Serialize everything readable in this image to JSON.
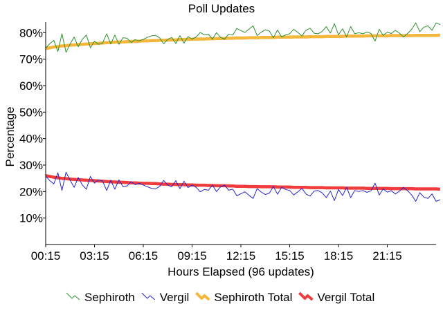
{
  "chart_data": {
    "type": "line",
    "title": "Poll Updates",
    "xlabel": "Hours Elapsed (96 updates)",
    "ylabel": "Percentage",
    "x_tick_labels": [
      "00:15",
      "03:15",
      "06:15",
      "09:15",
      "12:15",
      "15:15",
      "18:15",
      "21:15"
    ],
    "x_tick_positions": [
      0,
      12,
      24,
      36,
      48,
      60,
      72,
      84
    ],
    "x_range": [
      0,
      96
    ],
    "y_tick_labels": [
      "10%",
      "20%",
      "30%",
      "40%",
      "50%",
      "60%",
      "70%",
      "80%"
    ],
    "y_tick_values": [
      10,
      20,
      30,
      40,
      50,
      60,
      70,
      80
    ],
    "ylim": [
      0,
      84
    ],
    "grid": false,
    "legend_position": "bottom",
    "series": [
      {
        "name": "Sephiroth",
        "color": "#2d8f2d",
        "style": "thin",
        "values": [
          74.2,
          75.8,
          77.1,
          72.9,
          79.6,
          72.6,
          75.7,
          78.4,
          74.7,
          77.5,
          79.1,
          74.3,
          76.8,
          75.6,
          76.1,
          79.6,
          75.7,
          79.1,
          75.6,
          78.1,
          77.9,
          76.3,
          77.4,
          76.9,
          77.5,
          78.2,
          78.8,
          79.0,
          78.1,
          75.8,
          77.5,
          78.2,
          75.9,
          78.9,
          76.1,
          78.5,
          77.6,
          78.4,
          80.1,
          79.2,
          79.5,
          77.6,
          80.0,
          78.2,
          77.6,
          79.5,
          79.1,
          81.6,
          80.8,
          80.1,
          81.4,
          82.6,
          78.9,
          80.2,
          81.1,
          80.6,
          78.1,
          81.0,
          78.4,
          79.2,
          79.6,
          81.3,
          80.1,
          78.8,
          80.9,
          81.7,
          79.8,
          79.6,
          80.5,
          82.3,
          79.8,
          83.4,
          79.2,
          81.5,
          78.4,
          82.3,
          79.6,
          80.0,
          79.6,
          80.3,
          79.7,
          76.8,
          81.3,
          79.0,
          80.2,
          79.7,
          80.9,
          79.8,
          78.4,
          79.7,
          81.3,
          83.7,
          80.4,
          82.1,
          82.6,
          80.9,
          83.7,
          83.1
        ]
      },
      {
        "name": "Vergil",
        "color": "#2424cc",
        "style": "thin",
        "values": [
          25.8,
          24.1,
          22.9,
          27.1,
          20.4,
          27.3,
          24.3,
          21.6,
          25.3,
          22.5,
          20.9,
          25.7,
          23.2,
          24.4,
          23.9,
          20.4,
          24.3,
          20.9,
          24.4,
          21.9,
          22.1,
          23.7,
          22.6,
          23.1,
          22.5,
          21.8,
          21.2,
          21.0,
          21.9,
          24.2,
          22.5,
          21.8,
          24.1,
          21.1,
          23.9,
          21.5,
          22.4,
          21.6,
          19.9,
          20.8,
          20.5,
          22.4,
          20.0,
          21.8,
          22.4,
          20.5,
          20.9,
          18.4,
          19.2,
          19.9,
          18.6,
          17.4,
          21.1,
          19.8,
          18.9,
          19.4,
          21.9,
          19.0,
          21.6,
          20.8,
          20.4,
          18.7,
          19.9,
          21.2,
          19.1,
          18.3,
          20.2,
          20.4,
          19.5,
          17.7,
          20.2,
          16.6,
          20.8,
          18.5,
          21.6,
          17.7,
          20.4,
          20.0,
          20.4,
          19.7,
          20.3,
          23.2,
          18.7,
          21.0,
          19.8,
          20.3,
          19.1,
          20.2,
          21.6,
          20.3,
          18.7,
          16.3,
          19.6,
          17.9,
          17.4,
          19.1,
          16.3,
          16.9
        ]
      },
      {
        "name": "Sephiroth Total",
        "color": "#f5b73b",
        "style": "thick",
        "values": [
          74.0,
          74.3,
          74.6,
          74.8,
          75.0,
          75.1,
          75.3,
          75.4,
          75.5,
          75.6,
          75.7,
          75.8,
          75.9,
          76.0,
          76.1,
          76.2,
          76.3,
          76.4,
          76.5,
          76.5,
          76.6,
          76.7,
          76.7,
          76.8,
          76.9,
          76.9,
          77.0,
          77.0,
          77.1,
          77.2,
          77.2,
          77.3,
          77.3,
          77.4,
          77.4,
          77.5,
          77.5,
          77.6,
          77.6,
          77.6,
          77.7,
          77.7,
          77.8,
          77.8,
          77.8,
          77.9,
          77.9,
          78.0,
          78.0,
          78.0,
          78.1,
          78.1,
          78.1,
          78.2,
          78.2,
          78.2,
          78.2,
          78.3,
          78.3,
          78.3,
          78.3,
          78.4,
          78.4,
          78.4,
          78.4,
          78.5,
          78.5,
          78.5,
          78.5,
          78.6,
          78.6,
          78.6,
          78.6,
          78.6,
          78.7,
          78.7,
          78.7,
          78.7,
          78.7,
          78.8,
          78.8,
          78.8,
          78.8,
          78.8,
          78.8,
          78.9,
          78.9,
          78.9,
          78.9,
          78.9,
          78.9,
          79.0,
          79.0,
          79.0,
          79.0,
          79.0,
          79.0,
          79.1
        ]
      },
      {
        "name": "Vergil Total",
        "color": "#f03c3c",
        "style": "thick",
        "values": [
          26.0,
          25.7,
          25.4,
          25.2,
          25.0,
          24.9,
          24.7,
          24.6,
          24.5,
          24.4,
          24.3,
          24.2,
          24.1,
          24.0,
          23.9,
          23.8,
          23.7,
          23.6,
          23.5,
          23.5,
          23.4,
          23.3,
          23.3,
          23.2,
          23.1,
          23.1,
          23.0,
          23.0,
          22.9,
          22.8,
          22.8,
          22.7,
          22.7,
          22.6,
          22.6,
          22.5,
          22.5,
          22.4,
          22.4,
          22.4,
          22.3,
          22.3,
          22.2,
          22.2,
          22.2,
          22.1,
          22.1,
          22.0,
          22.0,
          22.0,
          21.9,
          21.9,
          21.9,
          21.8,
          21.8,
          21.8,
          21.8,
          21.7,
          21.7,
          21.7,
          21.7,
          21.6,
          21.6,
          21.6,
          21.6,
          21.5,
          21.5,
          21.5,
          21.5,
          21.4,
          21.4,
          21.4,
          21.4,
          21.4,
          21.3,
          21.3,
          21.3,
          21.3,
          21.3,
          21.2,
          21.2,
          21.2,
          21.2,
          21.2,
          21.2,
          21.1,
          21.1,
          21.1,
          21.1,
          21.1,
          21.1,
          21.0,
          21.0,
          21.0,
          21.0,
          21.0,
          21.0,
          20.9
        ]
      }
    ]
  }
}
